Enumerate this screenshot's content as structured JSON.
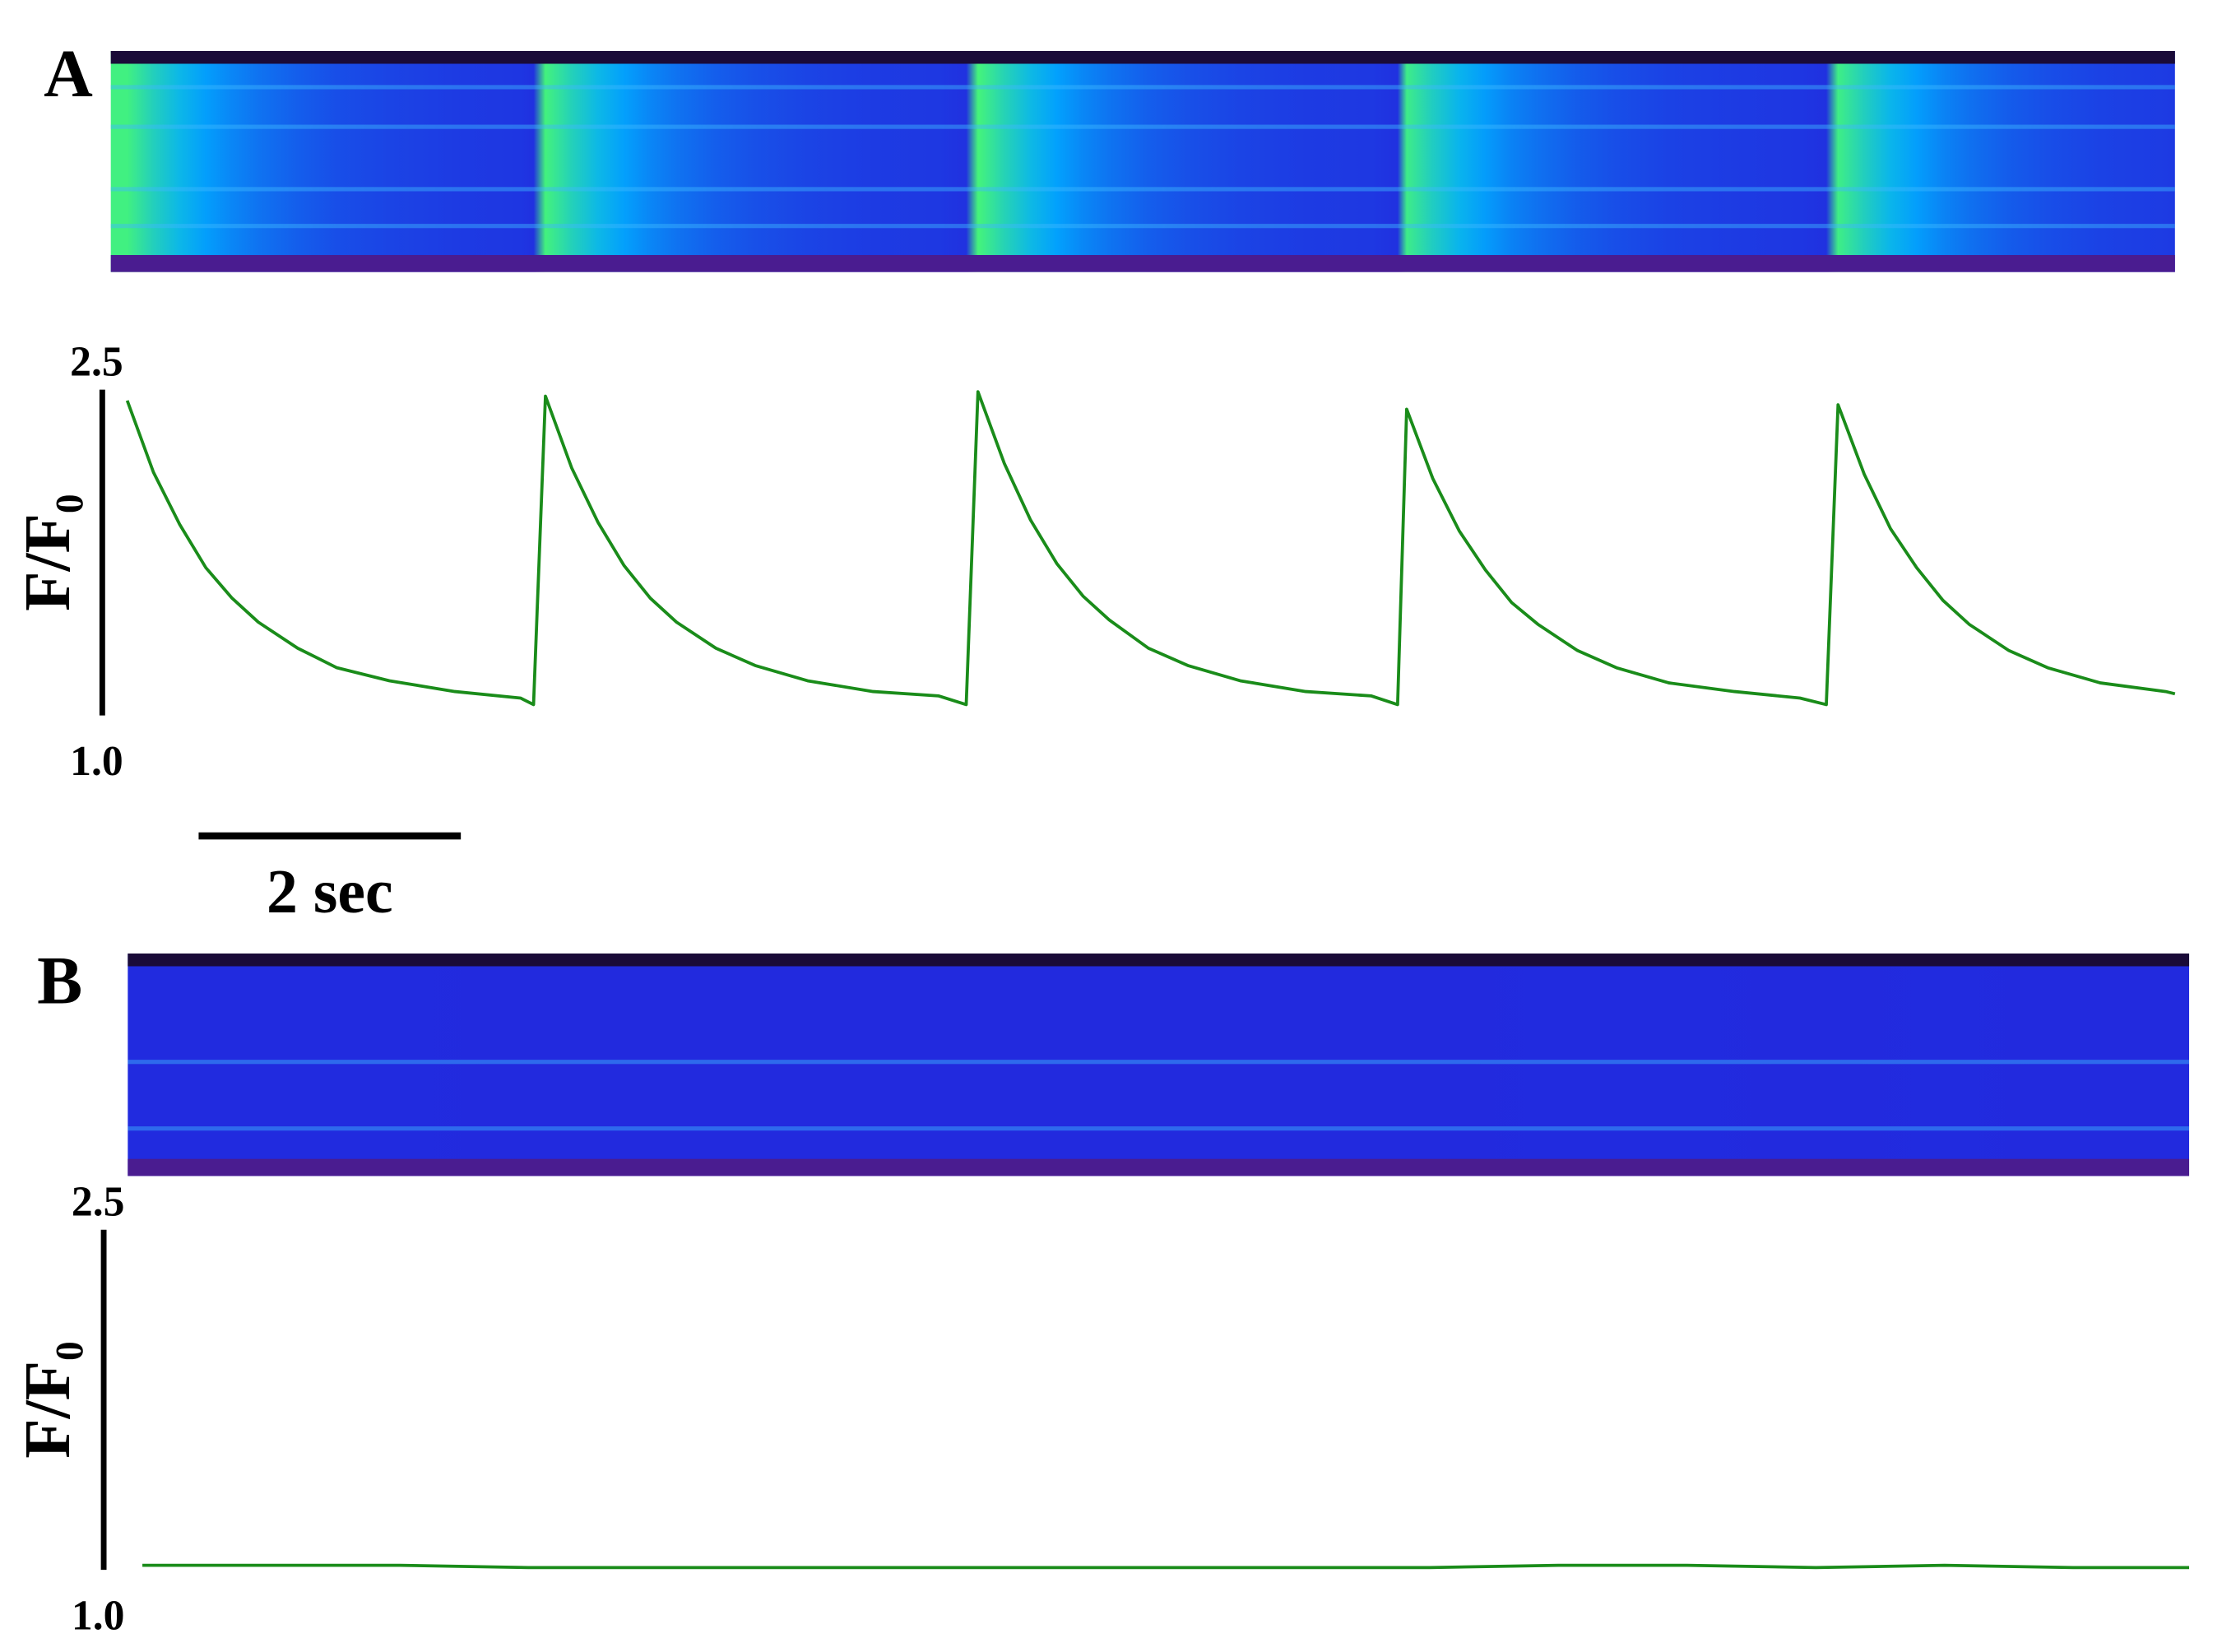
{
  "chart_data": [
    {
      "type": "line",
      "panel_label": "A",
      "y_label": "F/F₀",
      "color": "#1a8c1a",
      "xlim": [
        -0.19,
        15.62
      ],
      "ylim": [
        1.0,
        2.5
      ],
      "yticks": [
        {
          "value": 1.0,
          "label": "1.0"
        },
        2.5
      ],
      "scale_bar": {
        "value": 2,
        "label": "2 sec"
      },
      "x": [
        0,
        0.2,
        0.4,
        0.6,
        0.8,
        1.0,
        1.3,
        1.6,
        2.0,
        2.5,
        3.0,
        3.1,
        3.19,
        3.39,
        3.59,
        3.79,
        3.99,
        4.19,
        4.49,
        4.79,
        5.19,
        5.69,
        6.19,
        6.4,
        6.49,
        6.69,
        6.89,
        7.09,
        7.29,
        7.49,
        7.79,
        8.09,
        8.49,
        8.99,
        9.49,
        9.69,
        9.76,
        9.96,
        10.16,
        10.36,
        10.56,
        10.76,
        11.06,
        11.36,
        11.76,
        12.26,
        12.76,
        12.96,
        13.05,
        13.25,
        13.45,
        13.65,
        13.85,
        14.05,
        14.35,
        14.65,
        15.05,
        15.55,
        15.62
      ],
      "values": [
        2.45,
        2.12,
        1.88,
        1.68,
        1.54,
        1.43,
        1.31,
        1.22,
        1.16,
        1.11,
        1.08,
        1.05,
        2.47,
        2.14,
        1.89,
        1.69,
        1.54,
        1.43,
        1.31,
        1.23,
        1.16,
        1.11,
        1.09,
        1.05,
        2.49,
        2.16,
        1.9,
        1.7,
        1.55,
        1.44,
        1.31,
        1.23,
        1.16,
        1.11,
        1.09,
        1.05,
        2.41,
        2.09,
        1.85,
        1.67,
        1.52,
        1.42,
        1.3,
        1.22,
        1.15,
        1.11,
        1.08,
        1.05,
        2.43,
        2.11,
        1.86,
        1.68,
        1.53,
        1.42,
        1.3,
        1.22,
        1.15,
        1.11,
        1.1
      ]
    },
    {
      "type": "line",
      "panel_label": "B",
      "y_label": "F/F₀",
      "color": "#1a8c1a",
      "xlim": [
        -0.3,
        15.9
      ],
      "ylim": [
        1.0,
        2.5
      ],
      "yticks": [
        {
          "value": 1.0,
          "label": "1.0"
        },
        2.5
      ],
      "x": [
        0,
        1,
        2,
        3,
        4,
        5,
        6,
        7,
        8,
        9,
        10,
        11,
        12,
        13,
        14,
        15,
        15.9
      ],
      "values": [
        1.02,
        1.02,
        1.02,
        1.01,
        1.01,
        1.01,
        1.01,
        1.01,
        1.01,
        1.01,
        1.01,
        1.02,
        1.02,
        1.01,
        1.02,
        1.01,
        1.01
      ]
    }
  ]
}
